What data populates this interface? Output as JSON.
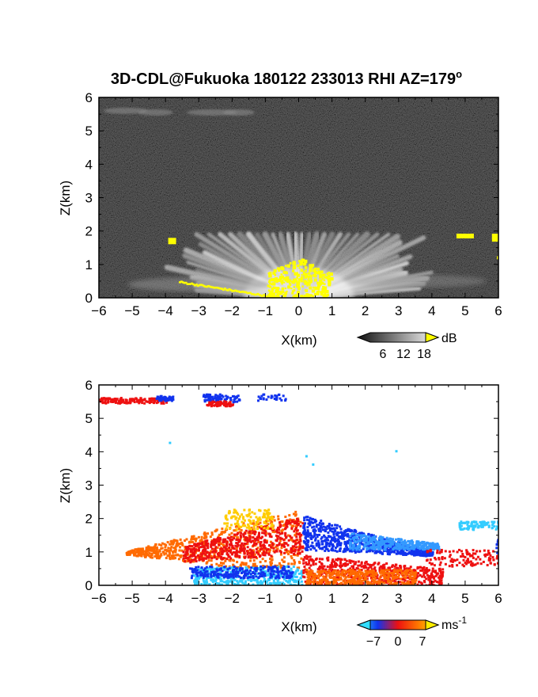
{
  "chart_data": {
    "title": "3D-CDL@Fukuoka 180122 233013 RHI AZ=179",
    "title_sup": "o",
    "panels": [
      {
        "name": "reflectivity",
        "type": "heatmap",
        "xlabel": "X(km)",
        "ylabel": "Z(km)",
        "xlim": [
          -6,
          6
        ],
        "ylim": [
          0,
          6
        ],
        "xticks": [
          -6,
          -5,
          -4,
          -3,
          -2,
          -1,
          0,
          1,
          2,
          3,
          4,
          5,
          6
        ],
        "yticks": [
          0,
          1,
          2,
          3,
          4,
          5,
          6
        ],
        "colormap": "gray-to-yellow",
        "colorbar": {
          "ticks": [
            6,
            12,
            18
          ],
          "unit": "dB",
          "unit_sup": ""
        },
        "background": "noise-gray",
        "features": [
          {
            "kind": "aerosol fan",
            "x_range": [
              -4.2,
              4.2
            ],
            "z_top": 1.9
          },
          {
            "kind": "layer",
            "z": 5.5,
            "x_range": [
              -6,
              -1.5
            ]
          },
          {
            "kind": "strong echo",
            "x_range": [
              -1,
              1
            ],
            "z_range": [
              0.1,
              1.2
            ]
          },
          {
            "kind": "strong echo",
            "x_range": [
              4.7,
              6
            ],
            "z_range": [
              1.7,
              1.9
            ]
          }
        ]
      },
      {
        "name": "doppler-velocity",
        "type": "heatmap",
        "xlabel": "X(km)",
        "ylabel": "Z(km)",
        "xlim": [
          -6,
          6
        ],
        "ylim": [
          0,
          6
        ],
        "xticks": [
          -6,
          -5,
          -4,
          -3,
          -2,
          -1,
          0,
          1,
          2,
          3,
          4,
          5,
          6
        ],
        "yticks": [
          0,
          1,
          2,
          3,
          4,
          5,
          6
        ],
        "colormap": "cyan-blue-red-yellow",
        "colorbar": {
          "ticks": [
            -7,
            0,
            7
          ],
          "unit": "ms",
          "unit_sup": "-1"
        },
        "features": [
          {
            "kind": "positive velocity (red/orange)",
            "x_range": [
              -5.2,
              0.1
            ],
            "z_range": [
              0.8,
              2.3
            ]
          },
          {
            "kind": "negative velocity (blue)",
            "x_range": [
              0.1,
              4.0
            ],
            "z_range": [
              0.9,
              2.2
            ]
          },
          {
            "kind": "negative velocity (cyan)",
            "x_range": [
              -3.2,
              0.1
            ],
            "z_range": [
              0,
              0.6
            ]
          },
          {
            "kind": "positive velocity (red/orange)",
            "x_range": [
              0.1,
              4.2
            ],
            "z_range": [
              0,
              0.9
            ]
          },
          {
            "kind": "layer",
            "z": 5.55,
            "x_range": [
              -6,
              -0.5
            ]
          },
          {
            "kind": "negative velocity (cyan)",
            "x_range": [
              4.8,
              6
            ],
            "z_range": [
              1.7,
              1.95
            ]
          }
        ]
      }
    ]
  },
  "colors": {
    "yellow": "#ffff00",
    "red": "#ee1111",
    "orange": "#ff6a00",
    "blue": "#1133ee",
    "cyan": "#33ccff"
  }
}
